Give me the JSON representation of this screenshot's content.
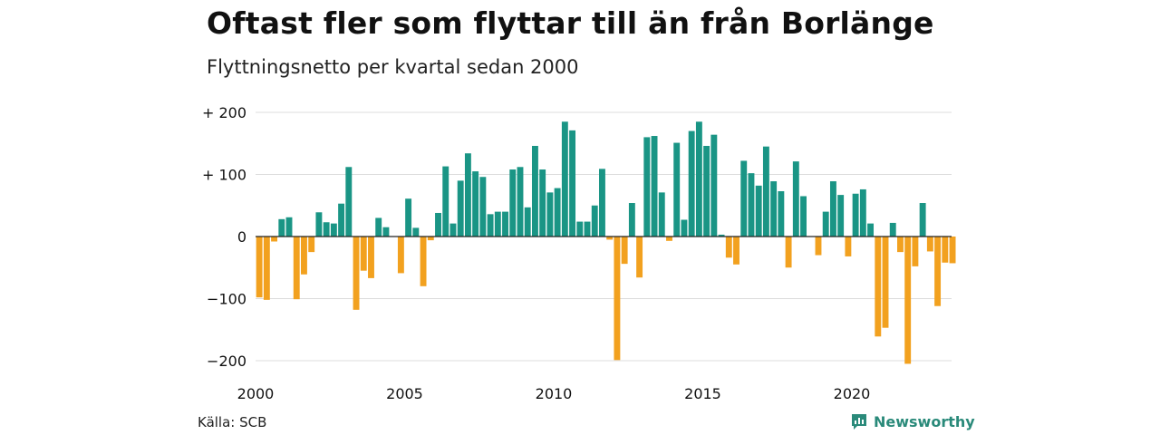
{
  "title": "Oftast fler som flyttar till än från Borlänge",
  "subtitle": "Flyttningsnetto per kvartal sedan 2000",
  "source": "Källa: SCB",
  "brand": "Newsworthy",
  "colors": {
    "positive": "#1a9585",
    "negative": "#f2a11f",
    "grid": "#dcdcdc",
    "brand": "#2a8a7a"
  },
  "chart_data": {
    "type": "bar",
    "title": "Oftast fler som flyttar till än från Borlänge",
    "subtitle": "Flyttningsnetto per kvartal sedan 2000",
    "ylim": [
      -210,
      200
    ],
    "yticks": [
      200,
      100,
      0,
      -100,
      -200
    ],
    "ytick_labels": [
      "+ 200",
      "+ 100",
      "0",
      "−100",
      "−200"
    ],
    "xticks": [
      2000,
      2005,
      2010,
      2015,
      2020
    ],
    "xtick_labels": [
      "2000",
      "2005",
      "2010",
      "2015",
      "2020"
    ],
    "grid": true,
    "start_year": 2000,
    "periods_per_year": 4,
    "values": [
      -98,
      -102,
      -8,
      28,
      31,
      -101,
      -61,
      -25,
      39,
      23,
      21,
      53,
      112,
      -118,
      -55,
      -67,
      30,
      15,
      0,
      -59,
      61,
      14,
      -80,
      -6,
      38,
      113,
      21,
      90,
      134,
      105,
      96,
      36,
      40,
      40,
      108,
      112,
      47,
      146,
      108,
      71,
      78,
      185,
      171,
      24,
      24,
      50,
      109,
      -5,
      -199,
      -44,
      54,
      -66,
      160,
      162,
      71,
      -7,
      151,
      27,
      170,
      185,
      146,
      164,
      3,
      -34,
      -45,
      122,
      102,
      82,
      145,
      89,
      73,
      -50,
      121,
      65,
      0,
      -30,
      40,
      89,
      67,
      -32,
      69,
      76,
      21,
      -161,
      -147,
      22,
      -25,
      -205,
      -48,
      54,
      -24,
      -112,
      -42,
      -43
    ]
  }
}
